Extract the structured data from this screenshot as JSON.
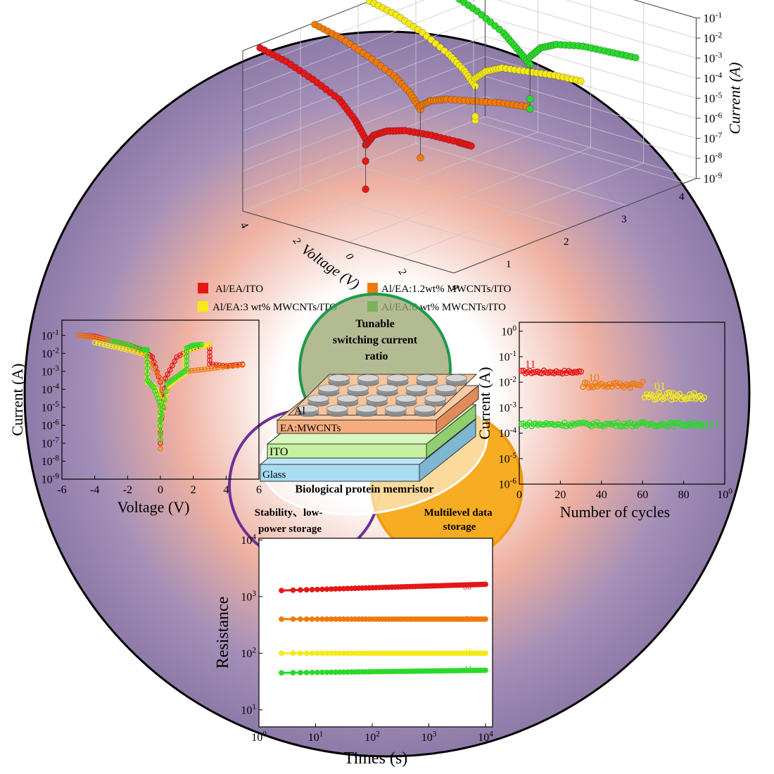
{
  "colors": {
    "red": "#e41818",
    "orange": "#ee7a0c",
    "yellow": "#f4ea1a",
    "green": "#2bd92b",
    "ring_green": "#1f9a4d",
    "ring_purple": "#6c2f96",
    "ring_orange": "#f29a12",
    "bg_center": "#ffffff",
    "bg_salmon": "#efb1a2",
    "bg_lavender": "#a48fb8",
    "bg_edge": "#8e7aa8",
    "layer_al_top": "#f7c79e",
    "layer_eamwcnt": "#f8ad80",
    "layer_ito": "#c4f2a0",
    "layer_glass": "#a8dcf2"
  },
  "venn": {
    "top_label": "Tunable switching current ratio",
    "left_label": "Stability、low-power storage",
    "right_label": "Multilevel data storage",
    "center_label": "Biological protein memristor"
  },
  "device": {
    "layers": [
      "Al",
      "EA:MWCNTs",
      "ITO",
      "Glass"
    ]
  },
  "legend": {
    "items": [
      "Al/EA/ITO",
      "Al/EA:1.2wt% MWCNTs/ITO",
      "Al/EA:3 wt% MWCNTs/ITO",
      "Al/EA:6 wt% MWCNTs/ITO"
    ]
  },
  "chart_data": [
    {
      "id": "plot3d",
      "type": "scatter",
      "xlabel": "Voltage (V)",
      "zlabel": "Current (A)",
      "x_ticks": [
        "4",
        "2",
        "0",
        "2",
        "4"
      ],
      "depth_ticks": [
        "1",
        "2",
        "3",
        "4"
      ],
      "z_ticks": [
        "10-1",
        "10-2",
        "10-3",
        "10-4",
        "10-5",
        "10-6",
        "10-7",
        "10-8",
        "10-9"
      ],
      "z_log_range": [
        -9,
        -1
      ],
      "x_range": [
        -4,
        4
      ],
      "series": [
        {
          "name": "Al/EA/ITO",
          "depth": 1,
          "color_key": "red",
          "low_branch": [
            [
              -4,
              -1.2
            ],
            [
              -3,
              -1.5
            ],
            [
              -2,
              -2.0
            ],
            [
              -1,
              -2.6
            ],
            [
              -0.4,
              -3.4
            ],
            [
              0,
              -4.2
            ]
          ],
          "high_branch": [
            [
              0,
              -4.5
            ],
            [
              0.3,
              -3.9
            ],
            [
              0.8,
              -3.5
            ],
            [
              1.5,
              -3.2
            ],
            [
              2.5,
              -3.05
            ],
            [
              3.5,
              -3.0
            ],
            [
              4,
              -3.0
            ]
          ],
          "points": [
            [
              0,
              -6.7
            ],
            [
              0,
              -5.3
            ]
          ]
        },
        {
          "name": "Al/EA:1.2wt% MWCNTs/ITO",
          "depth": 2,
          "color_key": "orange",
          "low_branch": [
            [
              -4,
              -1.1
            ],
            [
              -3,
              -1.4
            ],
            [
              -2,
              -1.9
            ],
            [
              -1,
              -2.5
            ],
            [
              -0.4,
              -3.1
            ],
            [
              0,
              -3.8
            ]
          ],
          "high_branch": [
            [
              0,
              -3.6
            ],
            [
              0.4,
              -3.2
            ],
            [
              1,
              -2.9
            ],
            [
              2,
              -2.6
            ],
            [
              3,
              -2.3
            ],
            [
              4,
              -2.1
            ]
          ],
          "points": [
            [
              0,
              -6.2
            ]
          ]
        },
        {
          "name": "Al/EA:3 wt% MWCNTs/ITO",
          "depth": 3,
          "color_key": "yellow",
          "low_branch": [
            [
              -4,
              -1.0
            ],
            [
              -3,
              -1.3
            ],
            [
              -2,
              -1.8
            ],
            [
              -1,
              -2.5
            ],
            [
              -0.4,
              -3.1
            ],
            [
              0,
              -3.7
            ]
          ],
          "high_branch": [
            [
              0,
              -3.3
            ],
            [
              0.4,
              -2.8
            ],
            [
              1,
              -2.4
            ],
            [
              2,
              -2.2
            ],
            [
              3,
              -2.0
            ],
            [
              4,
              -1.9
            ]
          ],
          "points": [
            [
              0,
              -5.4
            ],
            [
              0,
              -5.2
            ]
          ]
        },
        {
          "name": "Al/EA:6 wt% MWCNTs/ITO",
          "depth": 4,
          "color_key": "green",
          "low_branch": [
            [
              -4,
              -1.0
            ],
            [
              -3,
              -1.3
            ],
            [
              -2,
              -1.8
            ],
            [
              -1,
              -2.5
            ],
            [
              -0.4,
              -3.2
            ],
            [
              0,
              -3.7
            ]
          ],
          "high_branch": [
            [
              0,
              -3.3
            ],
            [
              0.4,
              -2.7
            ],
            [
              1,
              -2.3
            ],
            [
              2,
              -2.0
            ],
            [
              3,
              -1.9
            ],
            [
              4,
              -1.8
            ]
          ],
          "points": [
            [
              0,
              -5.9
            ],
            [
              0,
              -5.4
            ]
          ]
        }
      ]
    },
    {
      "id": "iv",
      "type": "scatter",
      "xlabel": "Voltage (V)",
      "ylabel": "Current (A)",
      "xlim": [
        -6,
        6
      ],
      "ylog_range": [
        -9,
        -1
      ],
      "x_ticks": [
        "-6",
        "-4",
        "-2",
        "0",
        "2",
        "4",
        "6"
      ],
      "y_ticks": [
        "10-1",
        "10-2",
        "10-3",
        "10-4",
        "10-5",
        "10-6",
        "10-7",
        "10-8",
        "10-9"
      ],
      "series": [
        {
          "name": "Al/EA/ITO",
          "color_key": "red",
          "low_branch": [
            [
              -5,
              -1.0
            ],
            [
              -4,
              -1.05
            ],
            [
              -3,
              -1.3
            ],
            [
              -2,
              -1.5
            ],
            [
              -1,
              -1.9
            ],
            [
              -0.5,
              -2.2
            ],
            [
              0,
              -3.6
            ],
            [
              0,
              -7.0
            ]
          ],
          "high_branch": [
            [
              0,
              -6.2
            ],
            [
              0.3,
              -3.4
            ],
            [
              1,
              -2.2
            ],
            [
              2,
              -1.7
            ],
            [
              3,
              -1.5
            ],
            [
              3,
              -2.6
            ],
            [
              4,
              -2.7
            ],
            [
              5,
              -2.6
            ]
          ]
        },
        {
          "name": "Al/EA:1.2wt% MWCNTs/ITO",
          "color_key": "orange",
          "low_branch": [
            [
              -5,
              -1.0
            ],
            [
              -4,
              -1.1
            ],
            [
              -3,
              -1.3
            ],
            [
              -2,
              -1.6
            ],
            [
              -1,
              -2.0
            ],
            [
              0,
              -3.4
            ],
            [
              0,
              -7.3
            ]
          ],
          "high_branch": [
            [
              0,
              -6.0
            ],
            [
              0.5,
              -3.6
            ],
            [
              1.5,
              -3.0
            ],
            [
              2.5,
              -2.9
            ],
            [
              3.5,
              -2.8
            ],
            [
              5,
              -2.65
            ]
          ]
        },
        {
          "name": "Al/EA:3 wt% MWCNTs/ITO",
          "color_key": "yellow",
          "low_branch": [
            [
              -4,
              -1.4
            ],
            [
              -3,
              -1.6
            ],
            [
              -2,
              -1.8
            ],
            [
              -0.8,
              -2.1
            ],
            [
              -0.8,
              -3.6
            ],
            [
              -0.4,
              -3.8
            ],
            [
              0,
              -4.6
            ],
            [
              0,
              -6.2
            ]
          ],
          "high_branch": [
            [
              0,
              -5.6
            ],
            [
              0.5,
              -3.8
            ],
            [
              1,
              -3.4
            ],
            [
              1.5,
              -3.1
            ],
            [
              1.5,
              -1.9
            ],
            [
              2.5,
              -1.6
            ],
            [
              3,
              -1.5
            ]
          ]
        },
        {
          "name": "Al/EA:6 wt% MWCNTs/ITO",
          "color_key": "green",
          "low_branch": [
            [
              -3,
              -1.3
            ],
            [
              -2,
              -1.5
            ],
            [
              -1,
              -1.8
            ],
            [
              -0.8,
              -1.8
            ],
            [
              -0.8,
              -3.5
            ],
            [
              -0.4,
              -3.9
            ],
            [
              0,
              -4.9
            ],
            [
              0,
              -6.8
            ]
          ],
          "high_branch": [
            [
              0,
              -5.8
            ],
            [
              0.4,
              -3.7
            ],
            [
              1,
              -3.3
            ],
            [
              1.6,
              -2.9
            ],
            [
              1.6,
              -1.7
            ],
            [
              2,
              -1.55
            ],
            [
              2.5,
              -1.5
            ]
          ]
        }
      ]
    },
    {
      "id": "cycles",
      "type": "scatter",
      "xlabel": "Number of cycles",
      "ylabel": "Current (A)",
      "xlim": [
        0,
        100
      ],
      "ylog_range": [
        -6,
        0
      ],
      "x_ticks": [
        "0",
        "20",
        "40",
        "60",
        "80",
        "100"
      ],
      "y_ticks": [
        "100",
        "10-1",
        "10-2",
        "10-3",
        "10-4",
        "10-5",
        "10-6"
      ],
      "series": [
        {
          "name": "11",
          "color_key": "red",
          "x_range": [
            1,
            30
          ],
          "log_value": -1.6,
          "jitter": 0.06
        },
        {
          "name": "10",
          "color_key": "orange",
          "x_range": [
            31,
            60
          ],
          "log_value": -2.1,
          "jitter": 0.12
        },
        {
          "name": "01",
          "color_key": "yellow",
          "x_range": [
            61,
            90
          ],
          "log_value": -2.55,
          "jitter": 0.15
        },
        {
          "name": "00",
          "color_key": "green",
          "x_range": [
            1,
            90
          ],
          "log_value": -3.65,
          "jitter": 0.08
        }
      ],
      "state_labels": [
        "11",
        "10",
        "01",
        "00"
      ]
    },
    {
      "id": "retention",
      "type": "scatter",
      "xlabel": "Times (s)",
      "ylabel": "Resistance",
      "xlog_range": [
        0,
        4
      ],
      "ylog_range": [
        0.7,
        4
      ],
      "x_ticks": [
        "100",
        "101",
        "102",
        "103",
        "104"
      ],
      "y_ticks": [
        "101",
        "102",
        "103",
        "104"
      ],
      "series": [
        {
          "name": "00",
          "color_key": "red",
          "start": 1280,
          "end": 1650
        },
        {
          "name": "01",
          "color_key": "orange",
          "start": 400,
          "end": 400
        },
        {
          "name": "10",
          "color_key": "yellow",
          "start": 100,
          "end": 100
        },
        {
          "name": "11",
          "color_key": "green",
          "start": 45,
          "end": 50
        }
      ],
      "state_labels": [
        "00",
        "01",
        "10",
        "11"
      ]
    }
  ]
}
